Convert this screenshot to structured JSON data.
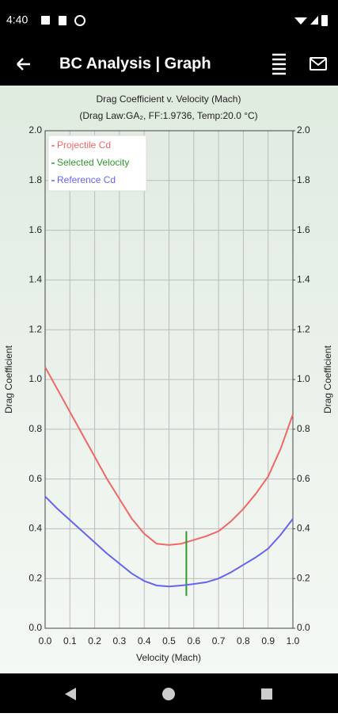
{
  "status_bar": {
    "time": "4:40"
  },
  "app_bar": {
    "title": "BC Analysis | Graph"
  },
  "chart_data": {
    "type": "line",
    "title": "Drag Coefficient v. Velocity (Mach)",
    "subtitle": "(Drag Law:GA₂, FF:1.9736, Temp:20.0 °C)",
    "x_label": "Velocity (Mach)",
    "y_label": "Drag Coefficient",
    "y2_label": "Drag Coefficient",
    "x": [
      0,
      0.05,
      0.1,
      0.15,
      0.2,
      0.25,
      0.3,
      0.35,
      0.4,
      0.45,
      0.5,
      0.55,
      0.6,
      0.65,
      0.7,
      0.75,
      0.8,
      0.85,
      0.9,
      0.95,
      1.0
    ],
    "series": [
      {
        "name": "Projectile Cd",
        "color": "#f26666",
        "values": [
          1.05,
          0.96,
          0.87,
          0.78,
          0.69,
          0.6,
          0.52,
          0.44,
          0.38,
          0.34,
          0.335,
          0.34,
          0.355,
          0.37,
          0.39,
          0.43,
          0.48,
          0.54,
          0.61,
          0.72,
          0.86
        ]
      },
      {
        "name": "Selected Velocity",
        "color": "#2e9a2e",
        "x": [
          0.57,
          0.57
        ],
        "values": [
          0.13,
          0.39
        ]
      },
      {
        "name": "Reference Cd",
        "color": "#6464f0",
        "values": [
          0.53,
          0.48,
          0.435,
          0.39,
          0.345,
          0.3,
          0.26,
          0.22,
          0.19,
          0.172,
          0.168,
          0.172,
          0.178,
          0.185,
          0.2,
          0.225,
          0.255,
          0.285,
          0.32,
          0.375,
          0.44
        ]
      }
    ],
    "xlim": [
      0,
      1
    ],
    "xticks": [
      {
        "value": 0,
        "label": "0.0"
      },
      0.1,
      0.2,
      0.3,
      0.4,
      0.5,
      0.6,
      0.7,
      0.8,
      0.9,
      {
        "value": 1,
        "label": "1.0"
      }
    ],
    "ylim": [
      0,
      2
    ],
    "yticks": [
      {
        "value": 0,
        "label": "0.0"
      },
      0.2,
      0.4,
      0.6,
      0.8,
      {
        "value": 1,
        "label": "1.0"
      },
      1.2,
      1.4,
      1.6,
      1.8,
      {
        "value": 2,
        "label": "2.0"
      }
    ],
    "y2lim": [
      0,
      2
    ],
    "y2ticks": [
      {
        "value": 0,
        "label": "0.0"
      },
      0.2,
      0.4,
      0.6,
      0.8,
      {
        "value": 1,
        "label": "1.0"
      },
      1.2,
      1.4,
      1.6,
      1.8,
      {
        "value": 2,
        "label": "2.0"
      }
    ],
    "grid": true,
    "legend": "top-left"
  }
}
